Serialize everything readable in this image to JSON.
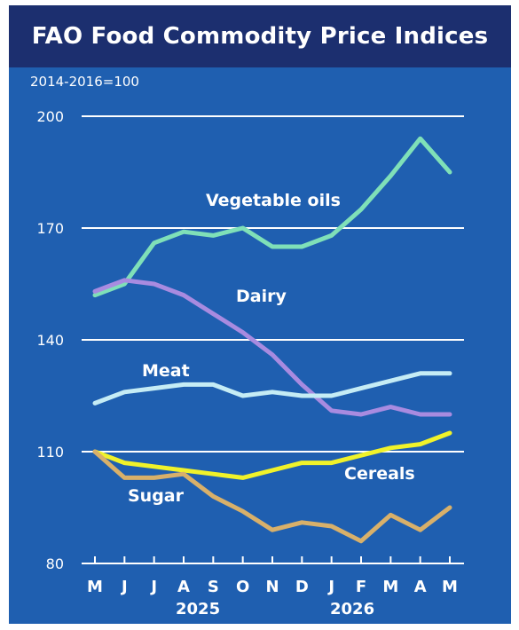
{
  "chart_data": {
    "type": "line",
    "title": "FAO Food Commodity Price Indices",
    "subtitle": "2014-2016=100",
    "x": [
      "M",
      "J",
      "J",
      "A",
      "S",
      "O",
      "N",
      "D",
      "J",
      "F",
      "M",
      "A",
      "M"
    ],
    "x_group_labels": [
      "2025",
      "2026"
    ],
    "ylim": [
      80,
      200
    ],
    "y_ticks": [
      80,
      110,
      140,
      170,
      200
    ],
    "grid": true,
    "series": [
      {
        "name": "Vegetable oils",
        "color": "#7fe0b8",
        "values": [
          152,
          155,
          166,
          169,
          168,
          170,
          165,
          165,
          168,
          175,
          184,
          194,
          185
        ]
      },
      {
        "name": "Dairy",
        "color": "#a88be0",
        "values": [
          153,
          156,
          155,
          152,
          147,
          142,
          136,
          128,
          121,
          120,
          122,
          120,
          120
        ]
      },
      {
        "name": "Meat",
        "color": "#c5ecf5",
        "values": [
          123,
          126,
          127,
          128,
          128,
          125,
          126,
          125,
          125,
          127,
          129,
          131,
          131
        ]
      },
      {
        "name": "Cereals",
        "color": "#f0f22a",
        "values": [
          110,
          107,
          106,
          105,
          104,
          103,
          105,
          107,
          107,
          109,
          111,
          112,
          115
        ]
      },
      {
        "name": "Sugar",
        "color": "#d8b06a",
        "values": [
          110,
          103,
          103,
          104,
          98,
          94,
          89,
          91,
          90,
          86,
          93,
          89,
          95
        ]
      }
    ]
  }
}
